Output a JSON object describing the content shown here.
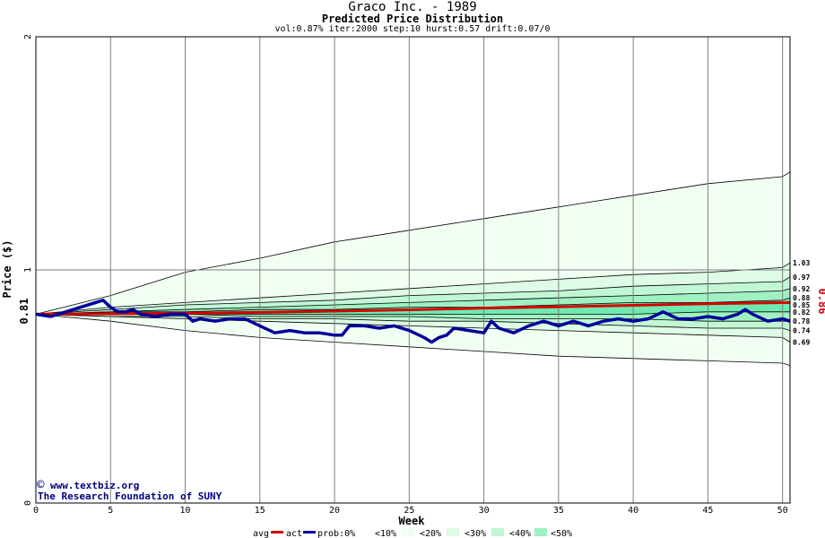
{
  "chart_data": {
    "type": "area",
    "title": "Graco Inc. - 1989",
    "subtitle": "Predicted Price Distribution",
    "params": "vol:0.87% iter:2000 step:10 hurst:0.57 drift:0.07/0",
    "xlabel": "Week",
    "ylabel": "Price ($)",
    "xlim": [
      0,
      50.5
    ],
    "ylim": [
      0,
      2
    ],
    "x_ticks": [
      0,
      5,
      10,
      15,
      20,
      25,
      30,
      35,
      40,
      45,
      50
    ],
    "y_ticks": [
      0,
      1,
      2
    ],
    "grid": true,
    "start_price_label": "0.81",
    "final_price_label": "0.86",
    "right_labels": [
      "1.03",
      "0.97",
      "0.92",
      "0.88",
      "0.85",
      "0.82",
      "0.78",
      "0.74",
      "0.69"
    ],
    "bands": [
      {
        "name": "<10%",
        "lower": [
          0.81,
          0.78,
          0.74,
          0.71,
          0.69,
          0.67,
          0.65,
          0.63,
          0.62,
          0.61,
          0.6,
          0.59
        ],
        "upper": [
          0.81,
          0.89,
          0.99,
          1.05,
          1.12,
          1.17,
          1.22,
          1.27,
          1.32,
          1.37,
          1.4,
          1.42
        ]
      },
      {
        "name": "<20%",
        "lower": [
          0.81,
          0.8,
          0.79,
          0.78,
          0.77,
          0.76,
          0.75,
          0.74,
          0.73,
          0.72,
          0.71,
          0.69
        ],
        "upper": [
          0.81,
          0.84,
          0.86,
          0.88,
          0.9,
          0.92,
          0.94,
          0.96,
          0.98,
          0.99,
          1.01,
          1.03
        ]
      },
      {
        "name": "<30%",
        "lower": [
          0.81,
          0.8,
          0.8,
          0.79,
          0.79,
          0.78,
          0.78,
          0.77,
          0.76,
          0.75,
          0.75,
          0.74
        ],
        "upper": [
          0.81,
          0.83,
          0.85,
          0.86,
          0.87,
          0.89,
          0.9,
          0.91,
          0.93,
          0.94,
          0.95,
          0.97
        ]
      },
      {
        "name": "<40%",
        "lower": [
          0.81,
          0.81,
          0.81,
          0.8,
          0.8,
          0.8,
          0.79,
          0.79,
          0.79,
          0.78,
          0.78,
          0.78
        ],
        "upper": [
          0.81,
          0.82,
          0.83,
          0.84,
          0.85,
          0.86,
          0.87,
          0.88,
          0.89,
          0.9,
          0.91,
          0.92
        ]
      },
      {
        "name": "<50%",
        "lower": [
          0.81,
          0.81,
          0.81,
          0.81,
          0.81,
          0.81,
          0.81,
          0.81,
          0.81,
          0.82,
          0.82,
          0.82
        ],
        "upper": [
          0.81,
          0.82,
          0.82,
          0.83,
          0.83,
          0.84,
          0.84,
          0.85,
          0.86,
          0.86,
          0.87,
          0.88
        ]
      }
    ],
    "band_x": [
      0,
      5,
      10,
      15,
      20,
      25,
      30,
      35,
      40,
      45,
      50,
      50.5
    ],
    "series": [
      {
        "name": "avg",
        "color": "#d40000",
        "x": [
          0,
          5,
          10,
          15,
          20,
          25,
          30,
          35,
          40,
          45,
          50.5
        ],
        "values": [
          0.81,
          0.812,
          0.814,
          0.818,
          0.823,
          0.829,
          0.836,
          0.842,
          0.848,
          0.855,
          0.86
        ]
      },
      {
        "name": "act",
        "color": "#000099",
        "x": [
          0,
          1,
          2,
          3,
          4,
          4.5,
          5,
          5.5,
          6,
          6.5,
          7,
          8,
          9,
          10,
          10.5,
          11,
          12,
          13,
          14,
          15,
          16,
          17,
          18,
          19,
          20,
          20.5,
          21,
          22,
          23,
          24,
          25,
          26,
          26.5,
          27,
          27.5,
          28,
          29,
          30,
          30.5,
          31,
          32,
          33,
          34,
          35,
          36,
          37,
          38,
          39,
          40,
          41,
          42,
          43,
          44,
          45,
          46,
          47,
          47.5,
          48,
          49,
          50,
          50.5
        ],
        "values": [
          0.81,
          0.8,
          0.82,
          0.84,
          0.86,
          0.87,
          0.84,
          0.82,
          0.82,
          0.83,
          0.81,
          0.8,
          0.81,
          0.81,
          0.78,
          0.79,
          0.78,
          0.79,
          0.79,
          0.76,
          0.73,
          0.74,
          0.73,
          0.73,
          0.72,
          0.72,
          0.76,
          0.76,
          0.75,
          0.76,
          0.74,
          0.71,
          0.69,
          0.71,
          0.72,
          0.75,
          0.74,
          0.73,
          0.78,
          0.75,
          0.73,
          0.76,
          0.78,
          0.76,
          0.78,
          0.76,
          0.78,
          0.79,
          0.78,
          0.79,
          0.82,
          0.79,
          0.79,
          0.8,
          0.79,
          0.81,
          0.83,
          0.81,
          0.78,
          0.79,
          0.78
        ]
      }
    ],
    "colors": {
      "band_10": "#f1fff3",
      "band_20": "#ddfbe6",
      "band_30": "#c2f7d6",
      "band_40": "#9ff1c2",
      "band_50": "#6eeab0",
      "avg_line": "#d40000",
      "act_line": "#000099",
      "grid": "#7f7f7f",
      "band_edge": "#000000"
    }
  },
  "watermark": {
    "copyright": "www.textbiz.org",
    "org": "The Research Foundation of SUNY"
  },
  "legend": {
    "avg": "avg",
    "act": "act",
    "prob": "prob:0%",
    "items": [
      "<10%",
      "<20%",
      "<30%",
      "<40%",
      "<50%"
    ]
  }
}
